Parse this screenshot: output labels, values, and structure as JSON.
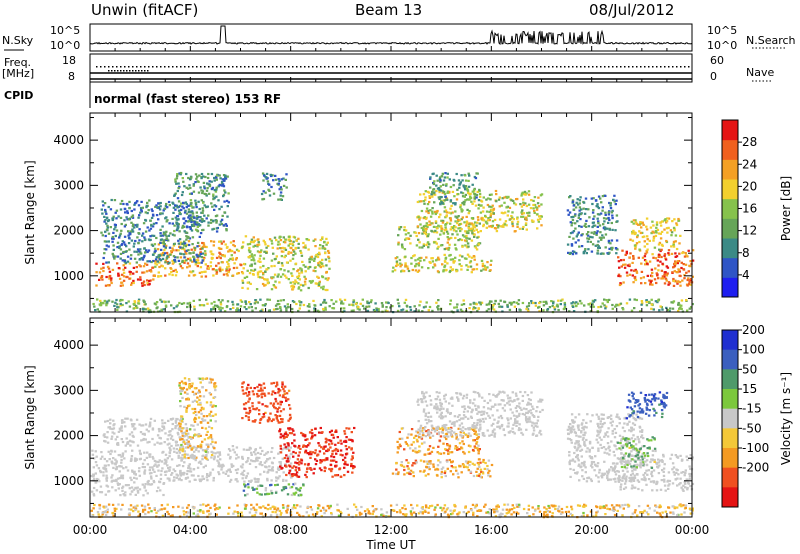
{
  "header": {
    "station": "Unwin (fitACF)",
    "beam": "Beam 13",
    "date": "08/Jul/2012"
  },
  "top_panel": {
    "left_label": "N.Sky",
    "right_label": "N.Search",
    "left_ticks": [
      "10^5",
      "10^0"
    ],
    "right_ticks": [
      "10^5",
      "10^0"
    ]
  },
  "freq_panel": {
    "left_label_1": "Freq.",
    "left_label_2": "[MHz]",
    "right_label": "Nave",
    "left_ticks": [
      "18",
      "8"
    ],
    "right_ticks": [
      "60",
      "0"
    ]
  },
  "cpid": {
    "label": "CPID",
    "mode": "normal (fast stereo) 153 RF"
  },
  "chart_data": [
    {
      "type": "heatmap",
      "name": "power",
      "ylabel": "Slant Range [km]",
      "ylim": [
        200,
        4600
      ],
      "yticks": [
        1000,
        2000,
        3000,
        4000
      ],
      "xlim": [
        0,
        24
      ],
      "colorbar": {
        "label": "Power [dB]",
        "ticks": [
          4,
          8,
          12,
          16,
          20,
          24,
          28
        ],
        "range": [
          0,
          32
        ],
        "colors": [
          "#1f1ff0",
          "#2f55c6",
          "#3b8a86",
          "#66a558",
          "#86c24c",
          "#f2d02e",
          "#f4a025",
          "#f0601e",
          "#e51414"
        ]
      },
      "echo_regions": [
        {
          "x": [
            0.2,
            2.5
          ],
          "y": [
            800,
            1300
          ],
          "level": 26
        },
        {
          "x": [
            2.5,
            6.0
          ],
          "y": [
            1000,
            1800
          ],
          "level": 22
        },
        {
          "x": [
            0.4,
            4.5
          ],
          "y": [
            1300,
            2700
          ],
          "level": 9
        },
        {
          "x": [
            3.3,
            5.5
          ],
          "y": [
            2000,
            3300
          ],
          "level": 10
        },
        {
          "x": [
            6.0,
            9.5
          ],
          "y": [
            700,
            1900
          ],
          "level": 18
        },
        {
          "x": [
            6.8,
            7.8
          ],
          "y": [
            2700,
            3300
          ],
          "level": 9
        },
        {
          "x": [
            12.0,
            16.0
          ],
          "y": [
            1100,
            1500
          ],
          "level": 19
        },
        {
          "x": [
            12.2,
            15.5
          ],
          "y": [
            1600,
            2200
          ],
          "level": 17
        },
        {
          "x": [
            13.0,
            18.0
          ],
          "y": [
            2000,
            2900
          ],
          "level": 18
        },
        {
          "x": [
            13.5,
            15.5
          ],
          "y": [
            2600,
            3300
          ],
          "level": 11
        },
        {
          "x": [
            19.0,
            21.0
          ],
          "y": [
            1500,
            2800
          ],
          "level": 9
        },
        {
          "x": [
            21.0,
            24.0
          ],
          "y": [
            800,
            1600
          ],
          "level": 26
        },
        {
          "x": [
            21.5,
            23.5
          ],
          "y": [
            1600,
            2300
          ],
          "level": 19
        },
        {
          "x": [
            0.0,
            24.0
          ],
          "y": [
            220,
            500
          ],
          "level": 14
        }
      ]
    },
    {
      "type": "heatmap",
      "name": "velocity",
      "ylabel": "Slant Range [km]",
      "ylim": [
        200,
        4600
      ],
      "yticks": [
        1000,
        2000,
        3000,
        4000
      ],
      "xlim": [
        0,
        24
      ],
      "xlabel": "Time UT",
      "xticks": [
        "00:00",
        "04:00",
        "08:00",
        "12:00",
        "16:00",
        "20:00",
        "00:00"
      ],
      "colorbar": {
        "label": "Velocity [m s⁻¹]",
        "ticks": [
          200,
          100,
          50,
          15,
          -15,
          -50,
          -100,
          -200
        ],
        "colors": [
          "#1f2fd0",
          "#3b5fbf",
          "#4f9a6a",
          "#7cc83c",
          "#c8c8c8",
          "#f4c838",
          "#f49a22",
          "#f05020",
          "#e51414"
        ]
      },
      "echo_regions": [
        {
          "x": [
            0.0,
            3.0
          ],
          "y": [
            700,
            1700
          ],
          "level": 0
        },
        {
          "x": [
            3.0,
            8.0
          ],
          "y": [
            1000,
            1800
          ],
          "level": 0
        },
        {
          "x": [
            0.5,
            4.0
          ],
          "y": [
            1800,
            2400
          ],
          "level": 0
        },
        {
          "x": [
            3.5,
            5.0
          ],
          "y": [
            1500,
            3300
          ],
          "level": -40
        },
        {
          "x": [
            6.0,
            8.0
          ],
          "y": [
            2300,
            3200
          ],
          "level": -150
        },
        {
          "x": [
            7.5,
            10.5
          ],
          "y": [
            1100,
            2200
          ],
          "level": -200
        },
        {
          "x": [
            6.0,
            8.5
          ],
          "y": [
            700,
            1000
          ],
          "level": 60
        },
        {
          "x": [
            12.0,
            16.0
          ],
          "y": [
            1100,
            1500
          ],
          "level": -60
        },
        {
          "x": [
            12.2,
            15.5
          ],
          "y": [
            1600,
            2200
          ],
          "level": -60
        },
        {
          "x": [
            13.0,
            18.0
          ],
          "y": [
            2000,
            3000
          ],
          "level": 0
        },
        {
          "x": [
            19.0,
            22.0
          ],
          "y": [
            1000,
            2500
          ],
          "level": 0
        },
        {
          "x": [
            21.0,
            24.0
          ],
          "y": [
            800,
            1600
          ],
          "level": 0
        },
        {
          "x": [
            21.0,
            22.5
          ],
          "y": [
            1300,
            2000
          ],
          "level": 40
        },
        {
          "x": [
            21.2,
            23.0
          ],
          "y": [
            2400,
            3000
          ],
          "level": 150
        },
        {
          "x": [
            0.0,
            24.0
          ],
          "y": [
            220,
            500
          ],
          "level": -40
        }
      ]
    }
  ]
}
